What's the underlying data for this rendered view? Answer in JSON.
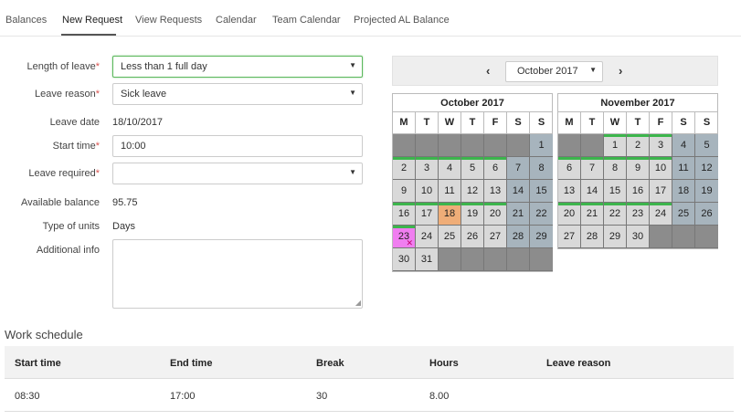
{
  "tabs": [
    "Balances",
    "New Request",
    "View Requests",
    "Calendar",
    "Team Calendar",
    "Projected AL Balance"
  ],
  "form": {
    "length_label": "Length of leave",
    "length_value": "Less than 1 full day",
    "reason_label": "Leave reason",
    "reason_value": "Sick leave",
    "date_label": "Leave date",
    "date_value": "18/10/2017",
    "start_label": "Start time",
    "start_value": "10:00",
    "required_label": "Leave required",
    "required_value": "",
    "balance_label": "Available balance",
    "balance_value": "95.75",
    "units_label": "Type of units",
    "units_value": "Days",
    "info_label": "Additional info",
    "info_value": "",
    "required_marker": "*"
  },
  "calendar": {
    "prev_icon": "‹",
    "next_icon": "›",
    "selected_month": "October 2017",
    "dow": [
      "M",
      "T",
      "W",
      "T",
      "F",
      "S",
      "S"
    ],
    "months": [
      {
        "title": "October 2017",
        "first_weekday_index": 6,
        "days_in_month": 31,
        "today": 18,
        "highlight": 23,
        "green_days": [
          2,
          3,
          4,
          5,
          6,
          16,
          17,
          18,
          19,
          20,
          23
        ]
      },
      {
        "title": "November 2017",
        "first_weekday_index": 2,
        "days_in_month": 30,
        "today": null,
        "highlight": null,
        "green_days": [
          1,
          2,
          3,
          6,
          7,
          8,
          9,
          10,
          20,
          21,
          22,
          23,
          24
        ]
      }
    ],
    "colors": {
      "weekday": "#d9d9d9",
      "weekend": "#a7b4bd",
      "empty": "#8c8c8c",
      "today": "#efad78",
      "highlight": "#f07ef0",
      "green_bar": "#3cb54c"
    }
  },
  "schedule": {
    "title": "Work schedule",
    "headers": [
      "Start time",
      "End time",
      "Break",
      "Hours",
      "Leave reason"
    ],
    "rows": [
      [
        "08:30",
        "17:00",
        "30",
        "8.00",
        ""
      ]
    ]
  }
}
